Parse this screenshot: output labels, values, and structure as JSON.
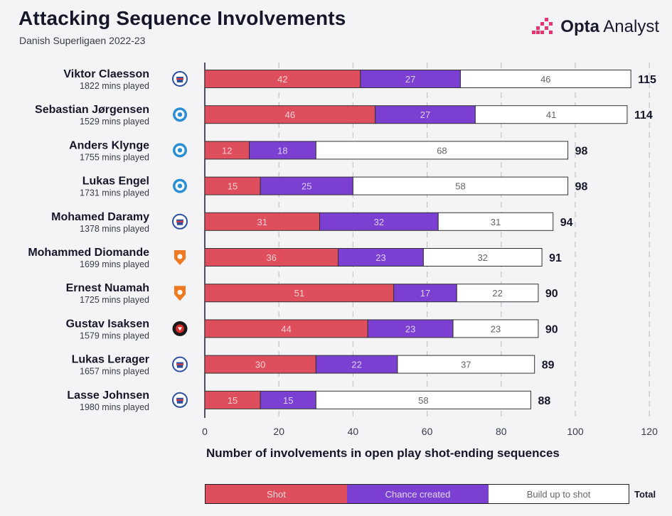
{
  "header": {
    "title": "Attacking Sequence Involvements",
    "subtitle": "Danish Superligaen 2022-23",
    "brand_name_bold": "Opta",
    "brand_name_regular": "Analyst"
  },
  "colors": {
    "shot": "#df4e5c",
    "chance": "#7b3fd2",
    "build": "#ffffff",
    "grid": "#c4c4ca",
    "text": "#16162a",
    "crest_copenhagen": "#2d4fa0",
    "crest_agf": "#2a8fd6",
    "crest_nordsjaelland": "#f07a22",
    "crest_midtjylland": "#1a1a1a"
  },
  "chart_data": {
    "type": "bar",
    "orientation": "horizontal",
    "stacked": true,
    "title": "Attacking Sequence Involvements",
    "subtitle": "Danish Superligaen 2022-23",
    "xlabel": "Number of involvements in open play shot-ending sequences",
    "ylabel": "",
    "xlim": [
      0,
      120
    ],
    "xticks": [
      0,
      20,
      40,
      60,
      80,
      100,
      120
    ],
    "grid": "vertical dashed",
    "categories": [
      "Viktor Claesson",
      "Sebastian Jørgensen",
      "Anders Klynge",
      "Lukas Engel",
      "Mohamed Daramy",
      "Mohammed Diomande",
      "Ernest Nuamah",
      "Gustav Isaksen",
      "Lukas Lerager",
      "Lasse Johnsen"
    ],
    "minutes": [
      "1822 mins played",
      "1529 mins played",
      "1755 mins played",
      "1731 mins played",
      "1378 mins played",
      "1699 mins played",
      "1725 mins played",
      "1579 mins played",
      "1657 mins played",
      "1980 mins played"
    ],
    "crests": [
      "copenhagen-crest-icon",
      "agf-crest-icon",
      "agf-crest-icon",
      "agf-crest-icon",
      "copenhagen-crest-icon",
      "nordsjaelland-crest-icon",
      "nordsjaelland-crest-icon",
      "midtjylland-crest-icon",
      "copenhagen-crest-icon",
      "copenhagen-crest-icon"
    ],
    "series": [
      {
        "name": "Shot",
        "values": [
          42,
          46,
          12,
          15,
          31,
          36,
          51,
          44,
          30,
          15
        ]
      },
      {
        "name": "Chance created",
        "values": [
          27,
          27,
          18,
          25,
          32,
          23,
          17,
          23,
          22,
          15
        ]
      },
      {
        "name": "Build up to shot",
        "values": [
          46,
          41,
          68,
          58,
          31,
          32,
          22,
          23,
          37,
          58
        ]
      }
    ],
    "totals": [
      115,
      114,
      98,
      98,
      94,
      91,
      90,
      90,
      89,
      88
    ],
    "legend": {
      "position": "bottom",
      "shot": "Shot",
      "chance": "Chance created",
      "build": "Build up to shot",
      "total": "Total"
    }
  }
}
